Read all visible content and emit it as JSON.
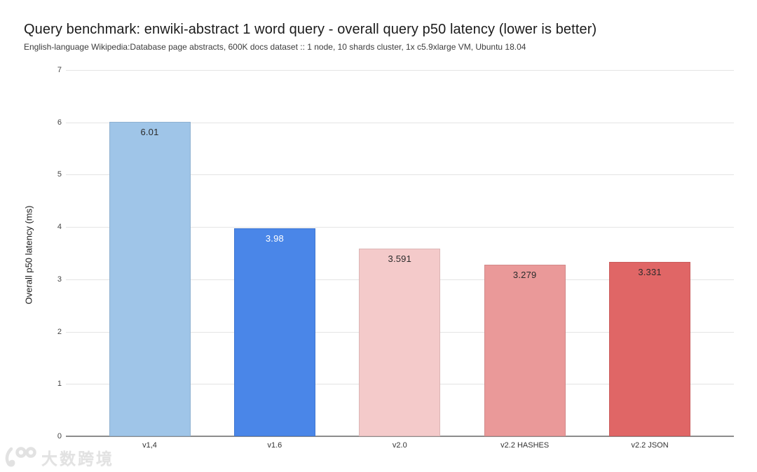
{
  "watermark": {
    "logo_icon": "100-rings-logo",
    "text": "大数跨境"
  },
  "chart_data": {
    "type": "bar",
    "title": "Query benchmark: enwiki-abstract 1 word query - overall query p50 latency (lower is better)",
    "subtitle": "English-language Wikipedia:Database page abstracts, 600K docs dataset :: 1 node, 10 shards cluster, 1x c5.9xlarge VM, Ubuntu 18.04",
    "xlabel": "",
    "ylabel": "Overall p50 latency (ms)",
    "ylim": [
      0,
      7
    ],
    "yticks": [
      0,
      1,
      2,
      3,
      4,
      5,
      6,
      7
    ],
    "grid": true,
    "legend": false,
    "categories": [
      "v1,4",
      "v1.6",
      "v2.0",
      "v2.2 HASHES",
      "v2.2 JSON"
    ],
    "values": [
      6.01,
      3.98,
      3.591,
      3.279,
      3.331
    ],
    "value_labels": [
      "6.01",
      "3.98",
      "3.591",
      "3.279",
      "3.331"
    ],
    "bar_colors": [
      "#9fc5e8",
      "#4a86e8",
      "#f4caca",
      "#ea9999",
      "#e06666"
    ],
    "value_label_colors": [
      "#2b2b2b",
      "#ffffff",
      "#2b2b2b",
      "#2b2b2b",
      "#2b2b2b"
    ]
  }
}
